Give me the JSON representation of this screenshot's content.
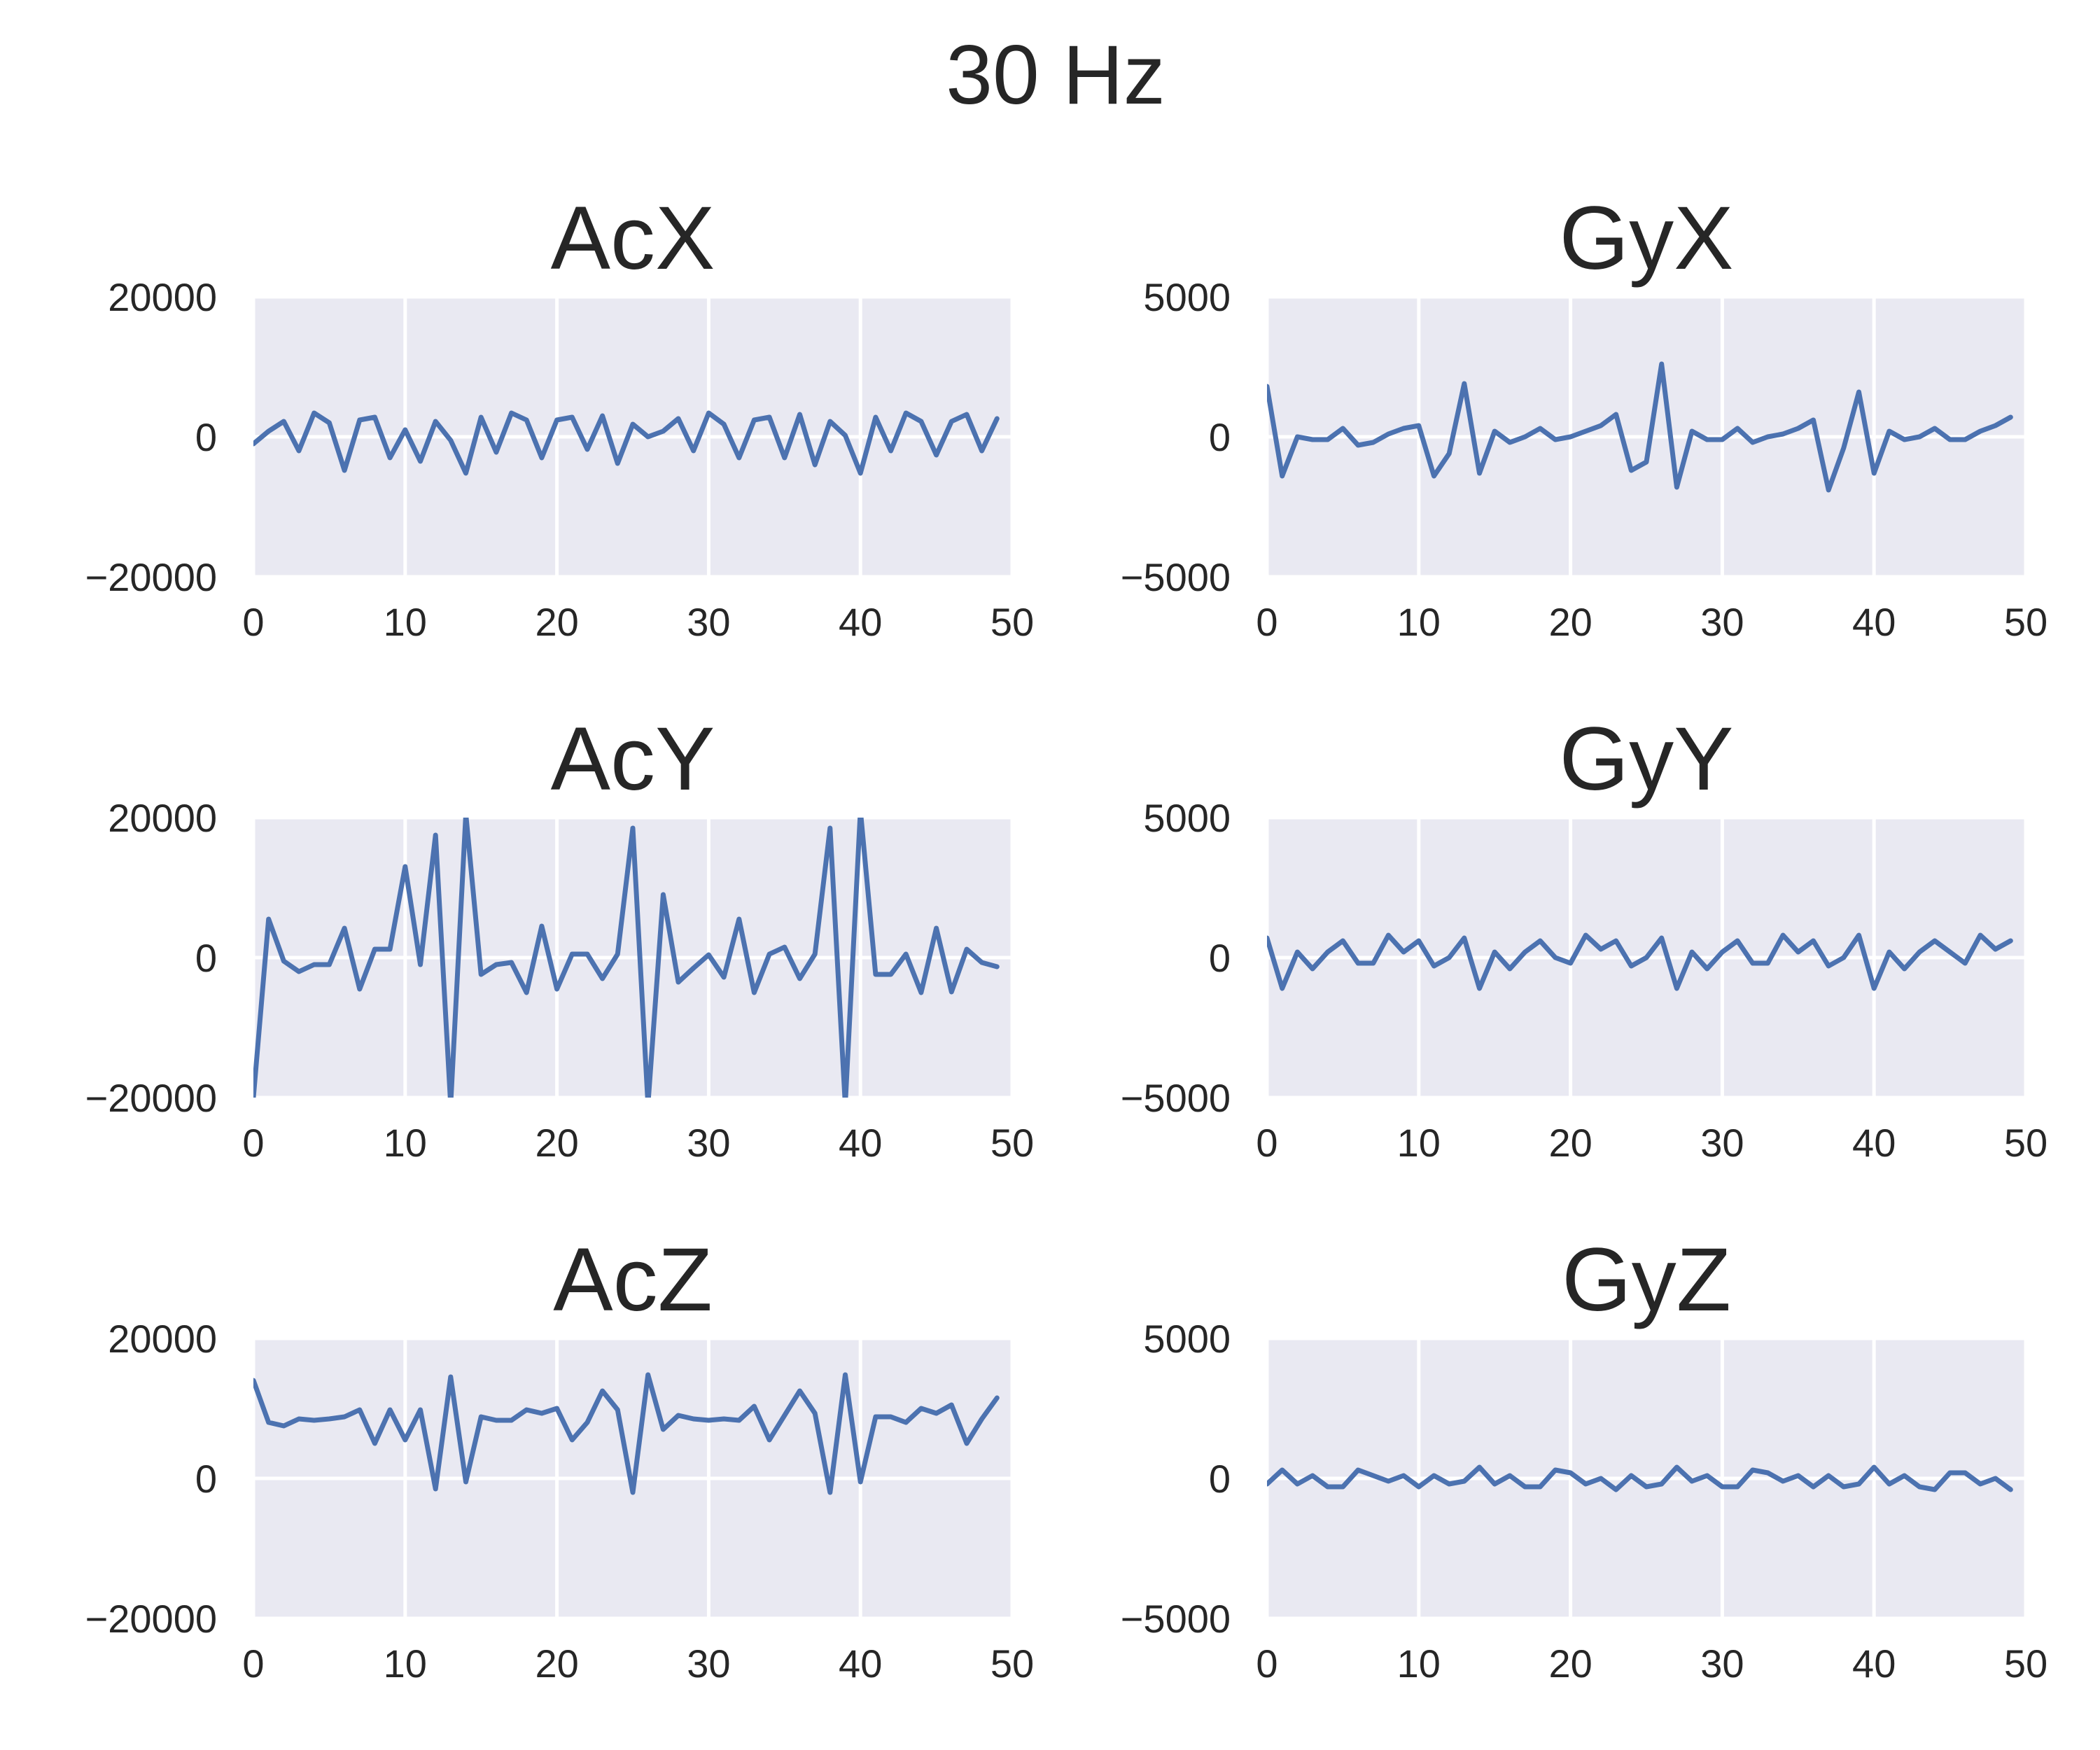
{
  "suptitle": "30 Hz",
  "series_color": "#4c72b0",
  "chart_data": [
    {
      "type": "line",
      "title": "AcX",
      "xlim": [
        0,
        50
      ],
      "ylim": [
        -20000,
        20000
      ],
      "xticks": [
        0,
        10,
        20,
        30,
        40,
        50
      ],
      "xtick_labels": [
        "0",
        "10",
        "20",
        "30",
        "40",
        "50"
      ],
      "yticks": [
        -20000,
        0,
        20000
      ],
      "ytick_labels": [
        "−20000",
        "0",
        "20000"
      ],
      "grid": true,
      "x": [
        0,
        1,
        2,
        3,
        4,
        5,
        6,
        7,
        8,
        9,
        10,
        11,
        12,
        13,
        14,
        15,
        16,
        17,
        18,
        19,
        20,
        21,
        22,
        23,
        24,
        25,
        26,
        27,
        28,
        29,
        30,
        31,
        32,
        33,
        34,
        35,
        36,
        37,
        38,
        39,
        40,
        41,
        42,
        43,
        44,
        45,
        46,
        47,
        48,
        49
      ],
      "series": [
        {
          "values": [
            -1000,
            800,
            2200,
            -2000,
            3400,
            2000,
            -4800,
            2400,
            2800,
            -3000,
            1000,
            -3500,
            2200,
            -500,
            -5200,
            2800,
            -2200,
            3400,
            2400,
            -3000,
            2400,
            2800,
            -1800,
            3000,
            -3800,
            1800,
            0,
            800,
            2600,
            -2000,
            3400,
            1800,
            -3000,
            2400,
            2800,
            -3000,
            3200,
            -4000,
            2200,
            200,
            -5200,
            2800,
            -2000,
            3400,
            2200,
            -2600,
            2200,
            3200,
            -2000,
            2600
          ]
        }
      ]
    },
    {
      "type": "line",
      "title": "GyX",
      "xlim": [
        0,
        50
      ],
      "ylim": [
        -5000,
        5000
      ],
      "xticks": [
        0,
        10,
        20,
        30,
        40,
        50
      ],
      "xtick_labels": [
        "0",
        "10",
        "20",
        "30",
        "40",
        "50"
      ],
      "yticks": [
        -5000,
        0,
        5000
      ],
      "ytick_labels": [
        "−5000",
        "0",
        "5000"
      ],
      "grid": true,
      "x": [
        0,
        1,
        2,
        3,
        4,
        5,
        6,
        7,
        8,
        9,
        10,
        11,
        12,
        13,
        14,
        15,
        16,
        17,
        18,
        19,
        20,
        21,
        22,
        23,
        24,
        25,
        26,
        27,
        28,
        29,
        30,
        31,
        32,
        33,
        34,
        35,
        36,
        37,
        38,
        39,
        40,
        41,
        42,
        43,
        44,
        45,
        46,
        47,
        48,
        49
      ],
      "series": [
        {
          "values": [
            1800,
            -1400,
            0,
            -100,
            -100,
            300,
            -300,
            -200,
            100,
            300,
            400,
            -1400,
            -600,
            1900,
            -1300,
            200,
            -200,
            0,
            300,
            -100,
            0,
            200,
            400,
            800,
            -1200,
            -900,
            2600,
            -1800,
            200,
            -100,
            -100,
            300,
            -200,
            0,
            100,
            300,
            600,
            -1900,
            -400,
            1600,
            -1300,
            200,
            -100,
            0,
            300,
            -100,
            -100,
            200,
            400,
            700
          ]
        }
      ]
    },
    {
      "type": "line",
      "title": "AcY",
      "xlim": [
        0,
        50
      ],
      "ylim": [
        -20000,
        20000
      ],
      "xticks": [
        0,
        10,
        20,
        30,
        40,
        50
      ],
      "xtick_labels": [
        "0",
        "10",
        "20",
        "30",
        "40",
        "50"
      ],
      "yticks": [
        -20000,
        0,
        20000
      ],
      "ytick_labels": [
        "−20000",
        "0",
        "20000"
      ],
      "grid": true,
      "x": [
        0,
        1,
        2,
        3,
        4,
        5,
        6,
        7,
        8,
        9,
        10,
        11,
        12,
        13,
        14,
        15,
        16,
        17,
        18,
        19,
        20,
        21,
        22,
        23,
        24,
        25,
        26,
        27,
        28,
        29,
        30,
        31,
        32,
        33,
        34,
        35,
        36,
        37,
        38,
        39,
        40,
        41,
        42,
        43,
        44,
        45,
        46,
        47,
        48,
        49
      ],
      "series": [
        {
          "values": [
            -20000,
            5500,
            -500,
            -2000,
            -1000,
            -1000,
            4200,
            -4500,
            1200,
            1200,
            13000,
            -1000,
            17500,
            -21000,
            20500,
            -2400,
            -1000,
            -700,
            -5000,
            4500,
            -4500,
            500,
            500,
            -3000,
            500,
            18500,
            -21000,
            9000,
            -3500,
            -1500,
            400,
            -2800,
            5500,
            -5000,
            500,
            1500,
            -3000,
            500,
            18500,
            -21000,
            21000,
            -2400,
            -2400,
            500,
            -5000,
            4200,
            -4900,
            1200,
            -700,
            -1300
          ]
        }
      ]
    },
    {
      "type": "line",
      "title": "GyY",
      "xlim": [
        0,
        50
      ],
      "ylim": [
        -5000,
        5000
      ],
      "xticks": [
        0,
        10,
        20,
        30,
        40,
        50
      ],
      "xtick_labels": [
        "0",
        "10",
        "20",
        "30",
        "40",
        "50"
      ],
      "yticks": [
        -5000,
        0,
        5000
      ],
      "ytick_labels": [
        "−5000",
        "0",
        "5000"
      ],
      "grid": true,
      "x": [
        0,
        1,
        2,
        3,
        4,
        5,
        6,
        7,
        8,
        9,
        10,
        11,
        12,
        13,
        14,
        15,
        16,
        17,
        18,
        19,
        20,
        21,
        22,
        23,
        24,
        25,
        26,
        27,
        28,
        29,
        30,
        31,
        32,
        33,
        34,
        35,
        36,
        37,
        38,
        39,
        40,
        41,
        42,
        43,
        44,
        45,
        46,
        47,
        48,
        49
      ],
      "series": [
        {
          "values": [
            700,
            -1100,
            200,
            -400,
            200,
            600,
            -200,
            -200,
            800,
            200,
            600,
            -300,
            0,
            700,
            -1100,
            200,
            -400,
            200,
            600,
            0,
            -200,
            800,
            300,
            600,
            -300,
            0,
            700,
            -1100,
            200,
            -400,
            200,
            600,
            -200,
            -200,
            800,
            200,
            600,
            -300,
            0,
            800,
            -1100,
            200,
            -400,
            200,
            600,
            200,
            -200,
            800,
            300,
            600
          ]
        }
      ]
    },
    {
      "type": "line",
      "title": "AcZ",
      "xlim": [
        0,
        50
      ],
      "ylim": [
        -20000,
        20000
      ],
      "xticks": [
        0,
        10,
        20,
        30,
        40,
        50
      ],
      "xtick_labels": [
        "0",
        "10",
        "20",
        "30",
        "40",
        "50"
      ],
      "yticks": [
        -20000,
        0,
        20000
      ],
      "ytick_labels": [
        "−20000",
        "0",
        "20000"
      ],
      "grid": true,
      "x": [
        0,
        1,
        2,
        3,
        4,
        5,
        6,
        7,
        8,
        9,
        10,
        11,
        12,
        13,
        14,
        15,
        16,
        17,
        18,
        19,
        20,
        21,
        22,
        23,
        24,
        25,
        26,
        27,
        28,
        29,
        30,
        31,
        32,
        33,
        34,
        35,
        36,
        37,
        38,
        39,
        40,
        41,
        42,
        43,
        44,
        45,
        46,
        47,
        48,
        49
      ],
      "series": [
        {
          "values": [
            14000,
            8000,
            7500,
            8500,
            8300,
            8500,
            8800,
            9800,
            5000,
            9800,
            5500,
            9800,
            -1500,
            14500,
            -500,
            8800,
            8300,
            8300,
            9800,
            9300,
            10000,
            5500,
            8000,
            12500,
            9800,
            -2000,
            14800,
            7000,
            9000,
            8500,
            8300,
            8500,
            8300,
            10300,
            5500,
            9000,
            12500,
            9300,
            -2000,
            14800,
            -500,
            8800,
            8800,
            8000,
            10000,
            9300,
            10500,
            5000,
            8500,
            11500
          ]
        }
      ]
    },
    {
      "type": "line",
      "title": "GyZ",
      "xlim": [
        0,
        50
      ],
      "ylim": [
        -5000,
        5000
      ],
      "xticks": [
        0,
        10,
        20,
        30,
        40,
        50
      ],
      "xtick_labels": [
        "0",
        "10",
        "20",
        "30",
        "40",
        "50"
      ],
      "yticks": [
        -5000,
        0,
        5000
      ],
      "ytick_labels": [
        "−5000",
        "0",
        "5000"
      ],
      "grid": true,
      "x": [
        0,
        1,
        2,
        3,
        4,
        5,
        6,
        7,
        8,
        9,
        10,
        11,
        12,
        13,
        14,
        15,
        16,
        17,
        18,
        19,
        20,
        21,
        22,
        23,
        24,
        25,
        26,
        27,
        28,
        29,
        30,
        31,
        32,
        33,
        34,
        35,
        36,
        37,
        38,
        39,
        40,
        41,
        42,
        43,
        44,
        45,
        46,
        47,
        48,
        49
      ],
      "series": [
        {
          "values": [
            -200,
            300,
            -200,
            100,
            -300,
            -300,
            300,
            100,
            -100,
            100,
            -300,
            100,
            -200,
            -100,
            400,
            -200,
            100,
            -300,
            -300,
            300,
            200,
            -200,
            0,
            -400,
            100,
            -300,
            -200,
            400,
            -100,
            100,
            -300,
            -300,
            300,
            200,
            -100,
            100,
            -300,
            100,
            -300,
            -200,
            400,
            -200,
            100,
            -300,
            -400,
            200,
            200,
            -200,
            0,
            -400
          ]
        }
      ]
    }
  ]
}
